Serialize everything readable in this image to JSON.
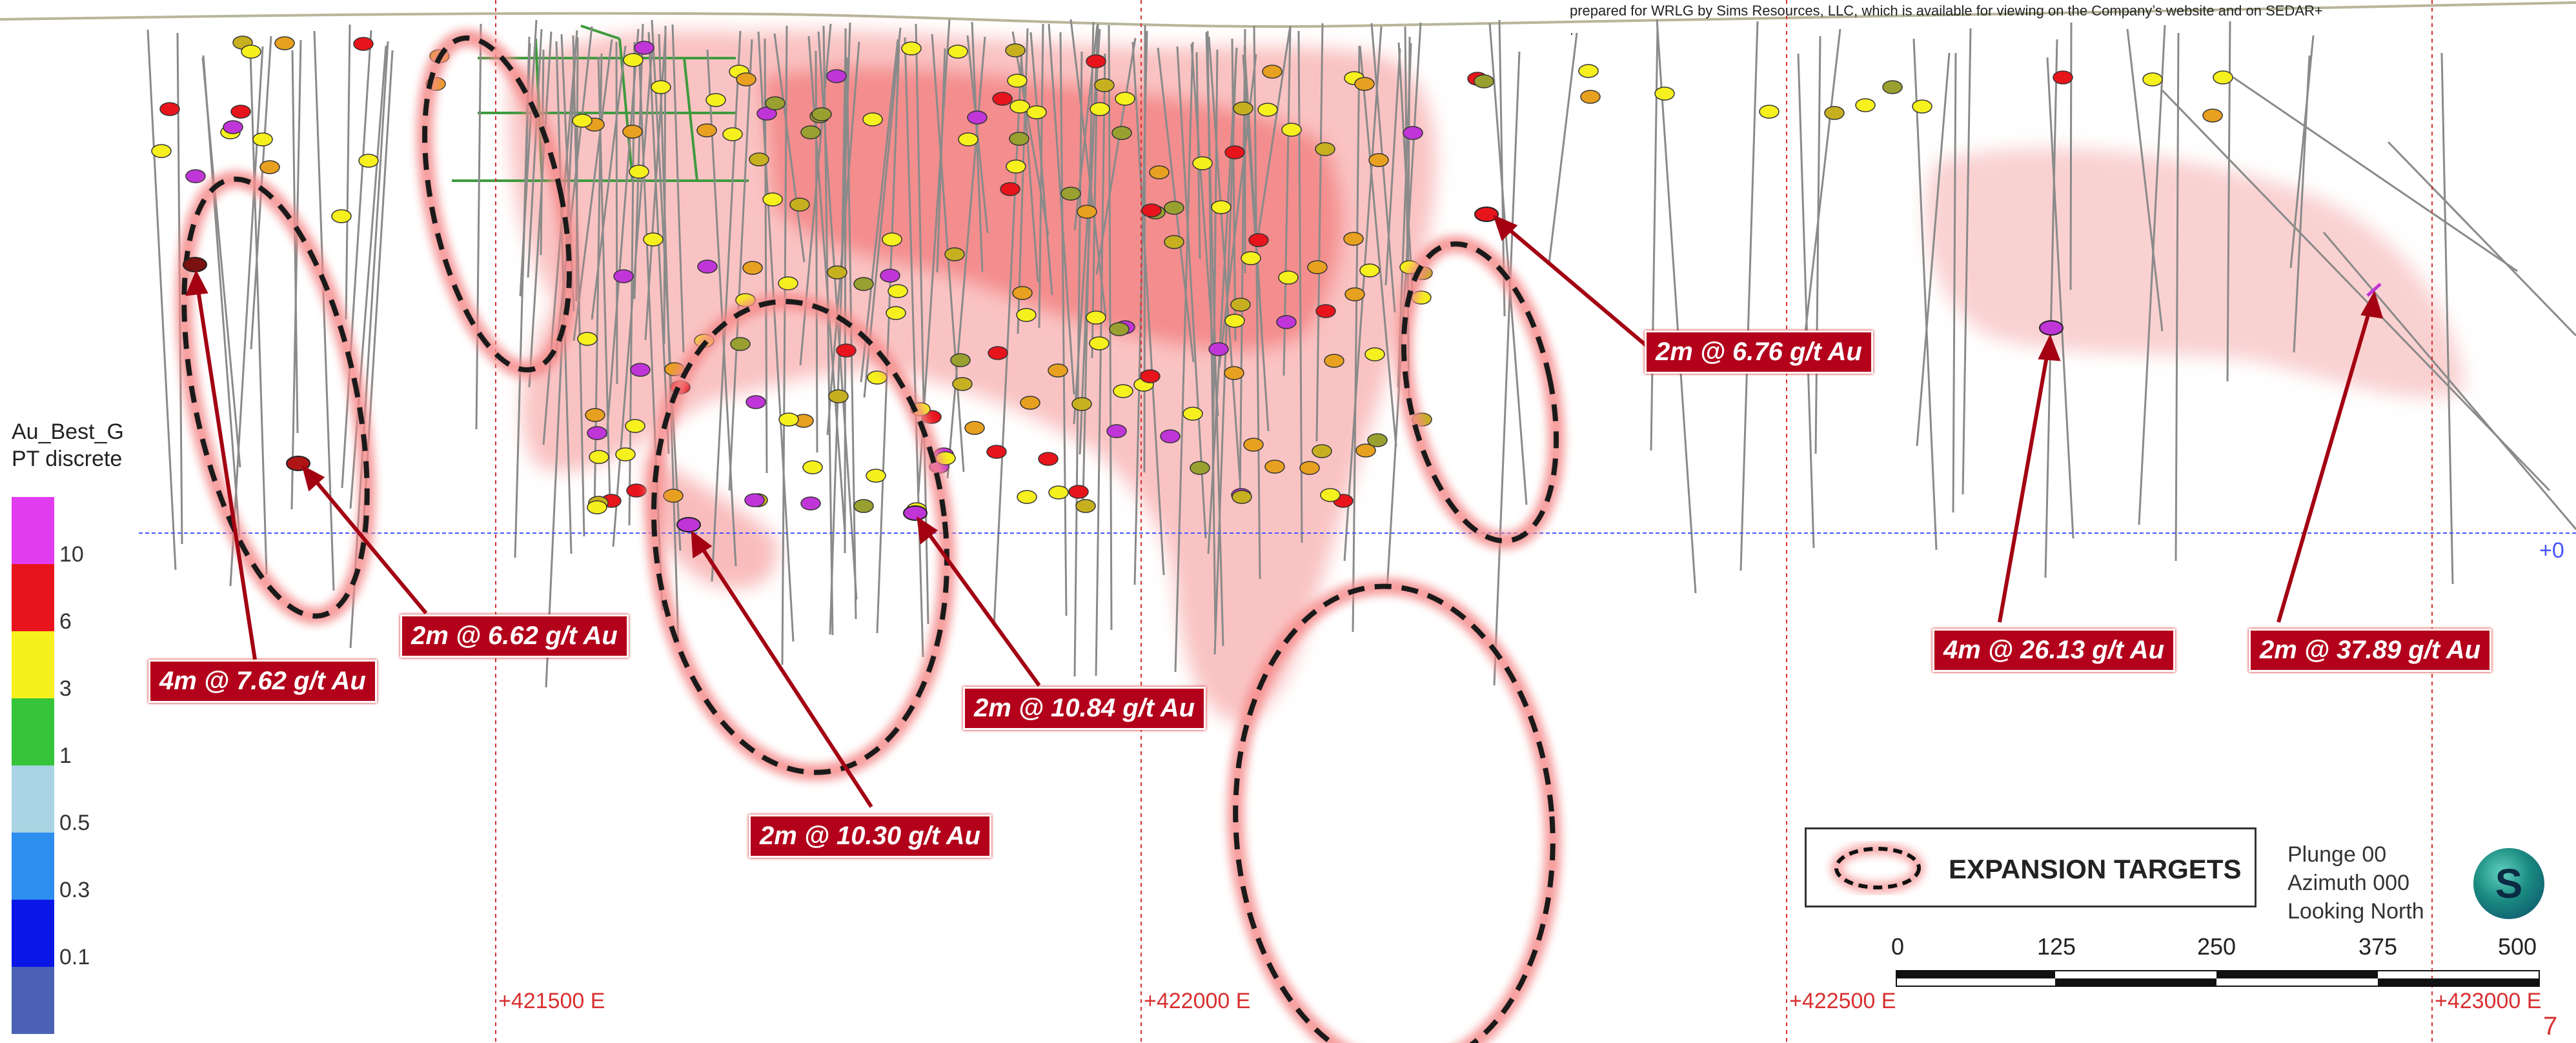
{
  "note": {
    "line1": "prepared for WRLG by Sims Resources, LLC, which is available for viewing on the Company’s website and on SEDAR+",
    "line2": "."
  },
  "legend": {
    "title_line1": "Au_Best_G",
    "title_line2": "PT discrete",
    "classes": [
      {
        "label": "10",
        "color": "#e23cf0"
      },
      {
        "label": "6",
        "color": "#e8141c"
      },
      {
        "label": "3",
        "color": "#f6f01e"
      },
      {
        "label": "1",
        "color": "#36c43a"
      },
      {
        "label": "0.5",
        "color": "#a8d4e4"
      },
      {
        "label": "0.3",
        "color": "#2d8ef0"
      },
      {
        "label": "0.1",
        "color": "#0a16e6"
      },
      {
        "label": "",
        "color": "#4b62b4"
      }
    ]
  },
  "callouts": [
    {
      "text": "4m @ 7.62 g/t Au"
    },
    {
      "text": "2m @ 6.62 g/t Au"
    },
    {
      "text": "2m @ 10.30 g/t Au"
    },
    {
      "text": "2m @ 10.84 g/t Au"
    },
    {
      "text": "2m @ 6.76 g/t Au"
    },
    {
      "text": "4m @ 26.13 g/t Au"
    },
    {
      "text": "2m @ 37.89 g/t Au"
    }
  ],
  "eastings": [
    "+421500 E",
    "+422000 E",
    "+422500 E",
    "+423000 E"
  ],
  "elevation_label": "+0",
  "expansion_legend": {
    "label": "EXPANSION TARGETS"
  },
  "view": {
    "plunge": "Plunge 00",
    "azimuth": "Azimuth 000",
    "looking": "Looking North"
  },
  "scale_bar": {
    "ticks": [
      "0",
      "125",
      "250",
      "375",
      "500"
    ]
  },
  "logo": {
    "letter": "S"
  },
  "page_number": "7",
  "colors": {
    "shell": "#f06a6a",
    "callout_bg": "#b3001b",
    "grid": "#d83030",
    "reference_line": "#4455ff"
  }
}
